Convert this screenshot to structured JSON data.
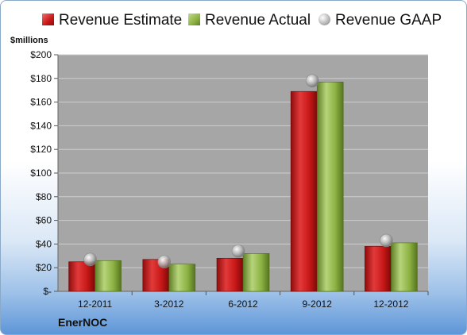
{
  "legend": {
    "estimate": "Revenue Estimate",
    "actual": "Revenue Actual",
    "gaap": "Revenue GAAP"
  },
  "company": "EnerNOC",
  "colors": {
    "estimate": "#c81818",
    "actual": "#8cb243",
    "gaap": "#a8a8a8",
    "plot_background": "#a6a6a6",
    "gridline": "#c8c8c8"
  },
  "chart_data": {
    "type": "bar",
    "ylabel": "$millions",
    "ylim": [
      0,
      200
    ],
    "yticks": [
      0,
      20,
      40,
      60,
      80,
      100,
      120,
      140,
      160,
      180,
      200
    ],
    "ytick_labels": [
      "$-",
      "$20",
      "$40",
      "$60",
      "$80",
      "$100",
      "$120",
      "$140",
      "$160",
      "$180",
      "$200"
    ],
    "grid": true,
    "legend_position": "top",
    "categories": [
      "12-2011",
      "3-2012",
      "6-2012",
      "9-2012",
      "12-2012"
    ],
    "series": [
      {
        "name": "Revenue Estimate",
        "kind": "bar",
        "values": [
          25,
          27,
          28,
          169,
          38
        ]
      },
      {
        "name": "Revenue Actual",
        "kind": "bar",
        "values": [
          26,
          23,
          32,
          177,
          41
        ]
      },
      {
        "name": "Revenue GAAP",
        "kind": "marker",
        "values": [
          27,
          25,
          34,
          178,
          43
        ]
      }
    ]
  }
}
